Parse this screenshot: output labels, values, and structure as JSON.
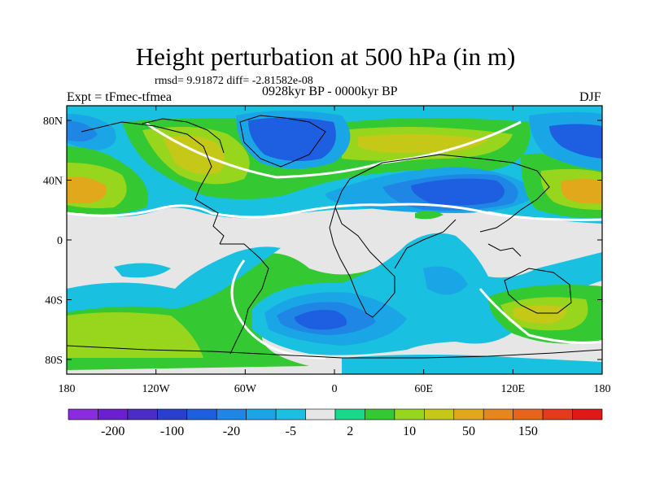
{
  "title": "Height perturbation at 500 hPa (in m)",
  "stats": "rmsd= 9.91872 diff= -2.81582e-08",
  "expt": "Expt = tFmec-tfmea",
  "period": "0928kyr BP - 0000kyr BP",
  "season": "DJF",
  "axes": {
    "y_ticks": [
      "80N",
      "40N",
      "0",
      "40S",
      "80S"
    ],
    "x_ticks": [
      "180",
      "120W",
      "60W",
      "0",
      "60E",
      "120E",
      "180"
    ]
  },
  "colorbar": {
    "colors": [
      "#8a2be2",
      "#6a1fd0",
      "#4b2cc8",
      "#2a3fd0",
      "#1d5fe0",
      "#1f86e6",
      "#1aa6e6",
      "#19c0e0",
      "#e6e6e6",
      "#18d88c",
      "#34c832",
      "#98d61e",
      "#c6c818",
      "#e0a81a",
      "#e6861c",
      "#e8641c",
      "#e6391e",
      "#e01818"
    ],
    "labels": [
      "-200",
      "-100",
      "-20",
      "-5",
      "2",
      "10",
      "50",
      "150"
    ]
  }
}
